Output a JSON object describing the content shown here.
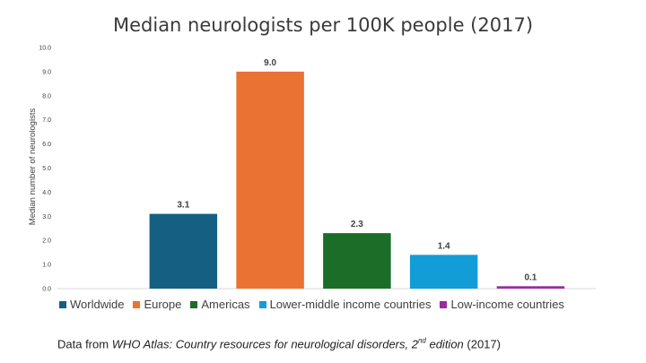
{
  "chart_data": {
    "type": "bar",
    "title": "Median neurologists per 100K people (2017)",
    "ylabel": "Median number of neurologists",
    "xlabel": "",
    "ylim": [
      0,
      10
    ],
    "yticks": [
      "0.0",
      "1.0",
      "2.0",
      "3.0",
      "4.0",
      "5.0",
      "6.0",
      "7.0",
      "8.0",
      "9.0",
      "10.0"
    ],
    "grid": false,
    "legend_position": "bottom",
    "categories": [
      "Worldwide",
      "Europe",
      "Americas",
      "Lower-middle income countries",
      "Low-income countries"
    ],
    "values": [
      3.1,
      9.0,
      2.3,
      1.4,
      0.1
    ],
    "value_labels": [
      "3.1",
      "9.0",
      "2.3",
      "1.4",
      "0.1"
    ],
    "colors": [
      "#155f83",
      "#ea7232",
      "#1b6d28",
      "#139dd6",
      "#982d9d"
    ]
  },
  "source": {
    "prefix": "Data from ",
    "title": "WHO Atlas: Country resources for neurological disorders, 2",
    "superscript": "nd",
    "title_end": " edition",
    "suffix": " (2017)"
  }
}
